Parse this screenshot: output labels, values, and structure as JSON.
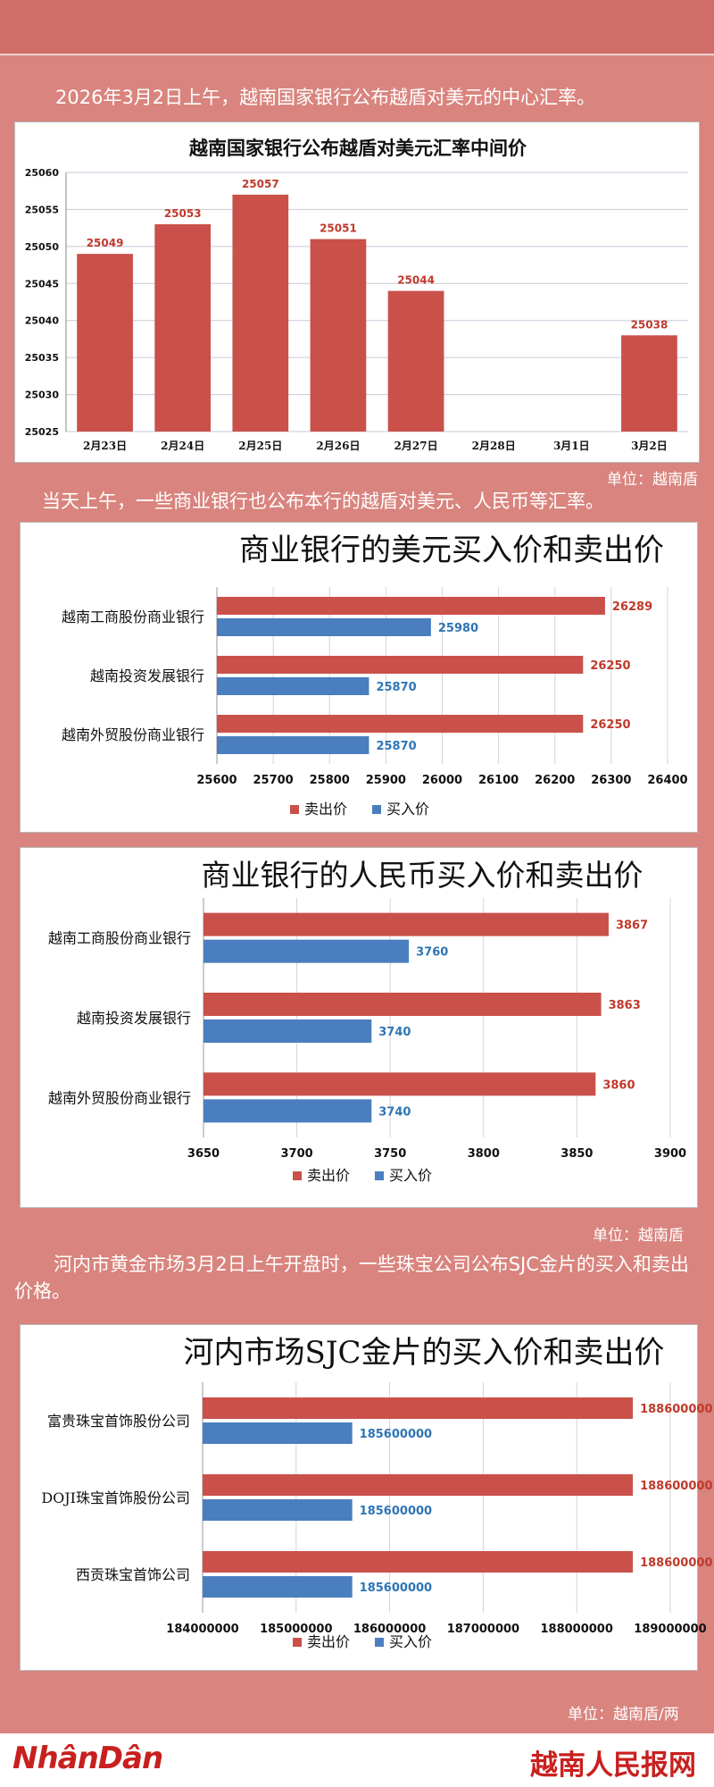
{
  "captions": {
    "c1": "2026年3月2日上午，越南国家银行公布越盾对美元的中心汇率。",
    "c2": "当天上午，一些商业银行也公布本行的越盾对美元、人民币等汇率。",
    "c3": "河内市黄金市场3月2日上午开盘时，一些珠宝公司公布SJC金片的买入和卖出价格。"
  },
  "units": {
    "u1": "单位：越南盾",
    "u2": "单位：越南盾",
    "u3": "单位：越南盾/两"
  },
  "footer": {
    "left_logo": "NhânDân",
    "right_logo": "越南人民报网"
  },
  "colors": {
    "sell": "#c9514a",
    "buy": "#4a7ebf",
    "sell_label": "#c0392b",
    "buy_label": "#2e75b6",
    "background": "#d9847e"
  },
  "chart_data": [
    {
      "type": "bar",
      "title": "越南国家银行公布越盾对美元汇率中间价",
      "categories": [
        "2月23日",
        "2月24日",
        "2月25日",
        "2月26日",
        "2月27日",
        "2月28日",
        "3月1日",
        "3月2日"
      ],
      "values": [
        25049,
        25053,
        25057,
        25051,
        25044,
        null,
        null,
        25038
      ],
      "ylim": [
        25025,
        25060
      ],
      "yticks": [
        25025,
        25030,
        25035,
        25040,
        25045,
        25050,
        25055,
        25060
      ],
      "grid": true
    },
    {
      "type": "bar",
      "orientation": "horizontal",
      "title": "商业银行的美元买入价和卖出价",
      "categories": [
        "越南工商股份商业银行",
        "越南投资发展银行",
        "越南外贸股份商业银行"
      ],
      "series": [
        {
          "name": "卖出价",
          "values": [
            26289,
            26250,
            26250
          ]
        },
        {
          "name": "买入价",
          "values": [
            25980,
            25870,
            25870
          ]
        }
      ],
      "xlim": [
        25600,
        26400
      ],
      "xticks": [
        25600,
        25700,
        25800,
        25900,
        26000,
        26100,
        26200,
        26300,
        26400
      ],
      "legend": "bottom",
      "grid": true
    },
    {
      "type": "bar",
      "orientation": "horizontal",
      "title": "商业银行的人民币买入价和卖出价",
      "categories": [
        "越南工商股份商业银行",
        "越南投资发展银行",
        "越南外贸股份商业银行"
      ],
      "series": [
        {
          "name": "卖出价",
          "values": [
            3867,
            3863,
            3860
          ]
        },
        {
          "name": "买入价",
          "values": [
            3760,
            3740,
            3740
          ]
        }
      ],
      "xlim": [
        3650,
        3900
      ],
      "xticks": [
        3650,
        3700,
        3750,
        3800,
        3850,
        3900
      ],
      "legend": "bottom",
      "grid": true
    },
    {
      "type": "bar",
      "orientation": "horizontal",
      "title": "河内市场SJC金片的买入价和卖出价",
      "categories": [
        "富贵珠宝首饰股份公司",
        "DOJI珠宝首饰股份公司",
        "西贡珠宝首饰公司"
      ],
      "series": [
        {
          "name": "卖出价",
          "values": [
            188600000,
            188600000,
            188600000
          ]
        },
        {
          "name": "买入价",
          "values": [
            185600000,
            185600000,
            185600000
          ]
        }
      ],
      "xlim": [
        184000000,
        189000000
      ],
      "xticks": [
        184000000,
        185000000,
        186000000,
        187000000,
        188000000,
        189000000
      ],
      "legend": "bottom",
      "grid": true
    }
  ]
}
